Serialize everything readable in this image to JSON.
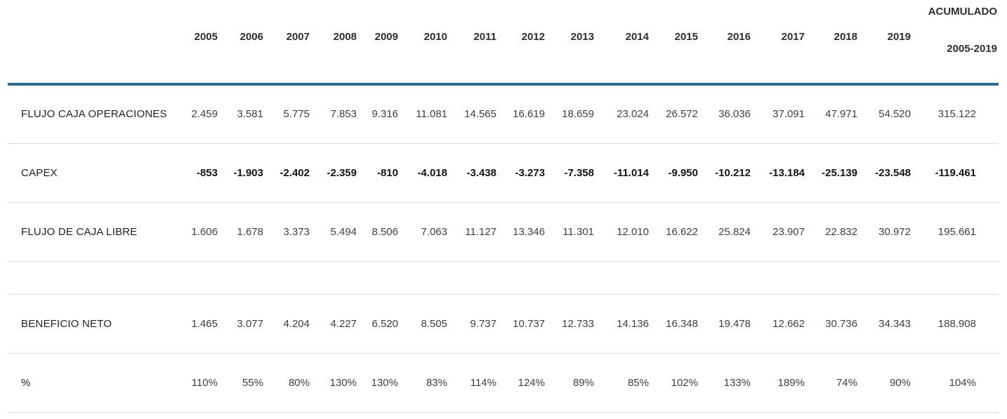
{
  "table": {
    "header": {
      "years": [
        "2005",
        "2006",
        "2007",
        "2008",
        "2009",
        "2010",
        "2011",
        "2012",
        "2013",
        "2014",
        "2015",
        "2016",
        "2017",
        "2018",
        "2019"
      ],
      "accumulated": [
        "ACUMULADO",
        "2005-2019"
      ]
    },
    "rows": [
      {
        "label": "FLUJO CAJA OPERACIONES",
        "values": [
          "2.459",
          "3.581",
          "5.775",
          "7.853",
          "9.316",
          "11.081",
          "14.565",
          "16.619",
          "18.659",
          "23.024",
          "26.572",
          "36.036",
          "37.091",
          "47.971",
          "54.520"
        ],
        "accumulated": "315.122",
        "bold": false,
        "spacer": false
      },
      {
        "label": "CAPEX",
        "values": [
          "-853",
          "-1.903",
          "-2.402",
          "-2.359",
          "-810",
          "-4.018",
          "-3.438",
          "-3.273",
          "-7.358",
          "-11.014",
          "-9.950",
          "-10.212",
          "-13.184",
          "-25.139",
          "-23.548"
        ],
        "accumulated": "-119.461",
        "bold": true,
        "spacer": false
      },
      {
        "label": "FLUJO DE CAJA LIBRE",
        "values": [
          "1.606",
          "1.678",
          "3.373",
          "5.494",
          "8.506",
          "7.063",
          "11.127",
          "13.346",
          "11.301",
          "12.010",
          "16.622",
          "25.824",
          "23.907",
          "22.832",
          "30.972"
        ],
        "accumulated": "195.661",
        "bold": false,
        "spacer": false
      },
      {
        "label": "",
        "values": [],
        "accumulated": "",
        "bold": false,
        "spacer": true
      },
      {
        "label": "BENEFICIO NETO",
        "values": [
          "1.465",
          "3.077",
          "4.204",
          "4.227",
          "6.520",
          "8.505",
          "9.737",
          "10.737",
          "12.733",
          "14.136",
          "16.348",
          "19.478",
          "12.662",
          "30.736",
          "34.343"
        ],
        "accumulated": "188.908",
        "bold": false,
        "spacer": false
      },
      {
        "label": "%",
        "values": [
          "110%",
          "55%",
          "80%",
          "130%",
          "130%",
          "83%",
          "114%",
          "124%",
          "89%",
          "85%",
          "102%",
          "133%",
          "189%",
          "74%",
          "90%"
        ],
        "accumulated": "104%",
        "bold": false,
        "spacer": false
      }
    ],
    "colors": {
      "header_rule": "#2b6b94",
      "row_divider": "#dcdcdc",
      "label_text": "#1f1f1f",
      "value_text": "#3f3f3f",
      "header_text": "#2e2e2e"
    }
  },
  "chart_data": {
    "type": "table",
    "title": "",
    "columns": [
      "2005",
      "2006",
      "2007",
      "2008",
      "2009",
      "2010",
      "2011",
      "2012",
      "2013",
      "2014",
      "2015",
      "2016",
      "2017",
      "2018",
      "2019",
      "ACUMULADO 2005-2019"
    ],
    "rows": [
      {
        "label": "FLUJO CAJA OPERACIONES",
        "values": [
          2459,
          3581,
          5775,
          7853,
          9316,
          11081,
          14565,
          16619,
          18659,
          23024,
          26572,
          36036,
          37091,
          47971,
          54520
        ],
        "acumulado": 315122
      },
      {
        "label": "CAPEX",
        "values": [
          -853,
          -1903,
          -2402,
          -2359,
          -810,
          -4018,
          -3438,
          -3273,
          -7358,
          -11014,
          -9950,
          -10212,
          -13184,
          -25139,
          -23548
        ],
        "acumulado": -119461
      },
      {
        "label": "FLUJO DE CAJA LIBRE",
        "values": [
          1606,
          1678,
          3373,
          5494,
          8506,
          7063,
          11127,
          13346,
          11301,
          12010,
          16622,
          25824,
          23907,
          22832,
          30972
        ],
        "acumulado": 195661
      },
      {
        "label": "BENEFICIO NETO",
        "values": [
          1465,
          3077,
          4204,
          4227,
          6520,
          8505,
          9737,
          10737,
          12733,
          14136,
          16348,
          19478,
          12662,
          30736,
          34343
        ],
        "acumulado": 188908
      },
      {
        "label": "%",
        "values_percent": [
          110,
          55,
          80,
          130,
          130,
          83,
          114,
          124,
          89,
          85,
          102,
          133,
          189,
          74,
          90
        ],
        "acumulado_percent": 104
      }
    ],
    "layout_hints": {
      "thousands_separator": ".",
      "bold_row": "CAPEX",
      "header_rule_color": "#2b6b94",
      "empty_spacer_row_between": [
        "FLUJO DE CAJA LIBRE",
        "BENEFICIO NETO"
      ]
    }
  }
}
